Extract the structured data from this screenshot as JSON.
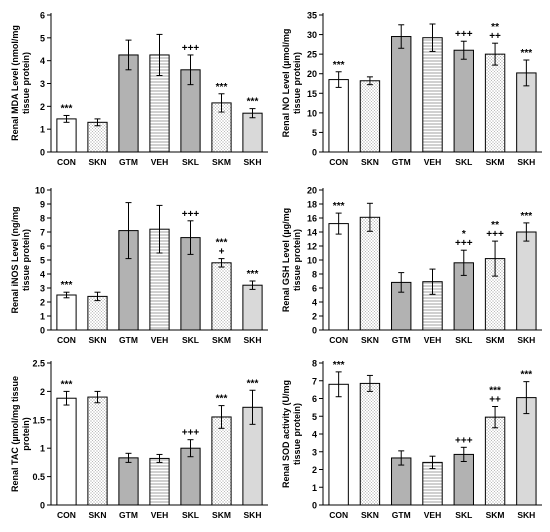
{
  "figure": {
    "categories": [
      "CON",
      "SKN",
      "GTM",
      "VEH",
      "SKL",
      "SKM",
      "SKH"
    ],
    "fills": [
      "white",
      "dots",
      "gray",
      "hlines",
      "gray",
      "dots",
      "lightgray"
    ],
    "colors": {
      "gray": "#b2b2b2",
      "lightgray": "#d9d9d9",
      "stroke": "#000000",
      "pattern": "#7a7a7a"
    }
  },
  "chart_data": [
    {
      "type": "bar",
      "ylabel": "Renal MDA Level (nmol/mg tissue protein)",
      "ylabel_lines": [
        "Renal MDA Level (nmol/mg",
        "tissue protein)"
      ],
      "ylim": [
        0,
        6
      ],
      "ytick_step": 1,
      "categories": [
        "CON",
        "SKN",
        "GTM",
        "VEH",
        "SKL",
        "SKM",
        "SKH"
      ],
      "values": [
        1.45,
        1.3,
        4.25,
        4.25,
        3.6,
        2.15,
        1.7
      ],
      "errors": [
        0.15,
        0.15,
        0.65,
        0.9,
        0.65,
        0.4,
        0.2
      ],
      "annotations": [
        [
          "***"
        ],
        [],
        [],
        [],
        [
          "+++"
        ],
        [
          "***"
        ],
        [
          "***"
        ]
      ]
    },
    {
      "type": "bar",
      "ylabel": "Renal NO Level (µmol/mg tissue protein)",
      "ylabel_lines": [
        "Renal NO Level (µmol/mg",
        "tissue protein)"
      ],
      "ylim": [
        0,
        35
      ],
      "ytick_step": 5,
      "categories": [
        "CON",
        "SKN",
        "GTM",
        "VEH",
        "SKL",
        "SKM",
        "SKH"
      ],
      "values": [
        18.5,
        18.2,
        29.5,
        29.2,
        26.0,
        25.0,
        20.2
      ],
      "errors": [
        2.0,
        1.0,
        3.0,
        3.5,
        2.3,
        2.8,
        3.3
      ],
      "annotations": [
        [
          "***"
        ],
        [],
        [],
        [],
        [
          "+++"
        ],
        [
          "**",
          "++"
        ],
        [
          "***"
        ]
      ]
    },
    {
      "type": "bar",
      "ylabel": "Renal iNOS Level (ng/mg tissue protein)",
      "ylabel_lines": [
        "Renal iNOS Level (ng/mg",
        "tissue protein)"
      ],
      "ylim": [
        0,
        10
      ],
      "ytick_step": 1,
      "categories": [
        "CON",
        "SKN",
        "GTM",
        "VEH",
        "SKL",
        "SKM",
        "SKH"
      ],
      "values": [
        2.5,
        2.4,
        7.1,
        7.2,
        6.6,
        4.8,
        3.2
      ],
      "errors": [
        0.2,
        0.3,
        2.0,
        1.7,
        1.2,
        0.3,
        0.3
      ],
      "annotations": [
        [
          "***"
        ],
        [],
        [],
        [],
        [
          "+++"
        ],
        [
          "***",
          "+"
        ],
        [
          "***"
        ]
      ]
    },
    {
      "type": "bar",
      "ylabel": "Renal GSH Level (µg/mg tissue protein)",
      "ylabel_lines": [
        "Renal GSH Level (µg/mg",
        "tissue protein)"
      ],
      "ylim": [
        0,
        20
      ],
      "ytick_step": 2,
      "categories": [
        "CON",
        "SKN",
        "GTM",
        "VEH",
        "SKL",
        "SKM",
        "SKH"
      ],
      "values": [
        15.2,
        16.1,
        6.8,
        6.9,
        9.6,
        10.2,
        14.0
      ],
      "errors": [
        1.5,
        2.0,
        1.4,
        1.8,
        1.8,
        2.5,
        1.3
      ],
      "annotations": [
        [
          "***"
        ],
        [],
        [],
        [],
        [
          "*",
          "+++"
        ],
        [
          "**",
          "+++"
        ],
        [
          "***"
        ]
      ]
    },
    {
      "type": "bar",
      "ylabel": "Renal TAC (µmol/mg tissue protein)",
      "ylabel_lines": [
        "Renal TAC (µmol/mg tissue",
        "protein)"
      ],
      "ylim": [
        0,
        2.5
      ],
      "ytick_step": 0.5,
      "categories": [
        "CON",
        "SKN",
        "GTM",
        "VEH",
        "SKL",
        "SKM",
        "SKH"
      ],
      "values": [
        1.88,
        1.9,
        0.83,
        0.82,
        1.0,
        1.55,
        1.72
      ],
      "errors": [
        0.12,
        0.1,
        0.08,
        0.07,
        0.15,
        0.2,
        0.3
      ],
      "annotations": [
        [
          "***"
        ],
        [],
        [],
        [],
        [
          "+++"
        ],
        [
          "***"
        ],
        [
          "***"
        ]
      ]
    },
    {
      "type": "bar",
      "ylabel": "Renal SOD activity (U/mg tissue protein)",
      "ylabel_lines": [
        "Renal SOD activity (U/mg",
        "tissue protein)"
      ],
      "ylim": [
        0,
        8
      ],
      "ytick_step": 1,
      "categories": [
        "CON",
        "SKN",
        "GTM",
        "VEH",
        "SKL",
        "SKM",
        "SKH"
      ],
      "values": [
        6.8,
        6.85,
        2.65,
        2.4,
        2.85,
        4.95,
        6.05
      ],
      "errors": [
        0.7,
        0.45,
        0.4,
        0.35,
        0.4,
        0.6,
        0.9
      ],
      "annotations": [
        [
          "***"
        ],
        [],
        [],
        [],
        [
          "+++"
        ],
        [
          "***",
          "++"
        ],
        [
          "***"
        ]
      ]
    }
  ]
}
